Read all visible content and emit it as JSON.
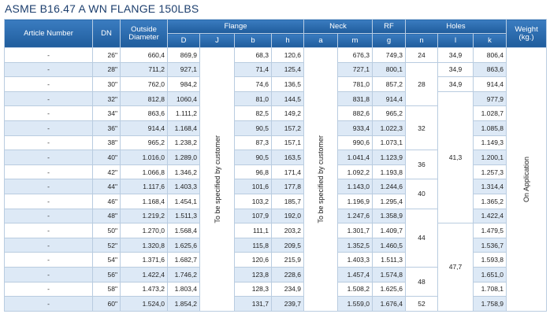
{
  "header": {
    "title": "ASME B16.47 A WN FLANGE 150LBS"
  },
  "table": {
    "columns": {
      "article": "Article Number",
      "dn": "DN",
      "od": "Outside Diameter",
      "flange": "Flange",
      "neck": "Neck",
      "rf": "RF",
      "holes": "Holes",
      "weight": "Weight (kg.)",
      "D": "D",
      "J": "J",
      "b": "b",
      "h": "h",
      "a": "a",
      "m": "m",
      "g": "g",
      "n": "n",
      "l": "l",
      "k": "k"
    },
    "rows": [
      [
        "-",
        "26\"",
        "660,4",
        "869,9",
        "68,3",
        "120,6",
        "676,3",
        "749,3",
        "806,4"
      ],
      [
        "-",
        "28\"",
        "711,2",
        "927,1",
        "71,4",
        "125,4",
        "727,1",
        "800,1",
        "863,6"
      ],
      [
        "-",
        "30\"",
        "762,0",
        "984,2",
        "74,6",
        "136,5",
        "781,0",
        "857,2",
        "914,4"
      ],
      [
        "-",
        "32\"",
        "812,8",
        "1060,4",
        "81,0",
        "144,5",
        "831,8",
        "914,4",
        "977,9"
      ],
      [
        "-",
        "34\"",
        "863,6",
        "1.111,2",
        "82,5",
        "149,2",
        "882,6",
        "965,2",
        "1.028,7"
      ],
      [
        "-",
        "36\"",
        "914,4",
        "1.168,4",
        "90,5",
        "157,2",
        "933,4",
        "1.022,3",
        "1.085,8"
      ],
      [
        "-",
        "38\"",
        "965,2",
        "1.238,2",
        "87,3",
        "157,1",
        "990,6",
        "1.073,1",
        "1.149,3"
      ],
      [
        "-",
        "40\"",
        "1.016,0",
        "1.289,0",
        "90,5",
        "163,5",
        "1.041,4",
        "1.123,9",
        "1.200,1"
      ],
      [
        "-",
        "42\"",
        "1.066,8",
        "1.346,2",
        "96,8",
        "171,4",
        "1.092,2",
        "1.193,8",
        "1.257,3"
      ],
      [
        "-",
        "44\"",
        "1.117,6",
        "1.403,3",
        "101,6",
        "177,8",
        "1.143,0",
        "1.244,6",
        "1.314,4"
      ],
      [
        "-",
        "46\"",
        "1.168,4",
        "1.454,1",
        "103,2",
        "185,7",
        "1.196,9",
        "1.295,4",
        "1.365,2"
      ],
      [
        "-",
        "48\"",
        "1.219,2",
        "1.511,3",
        "107,9",
        "192,0",
        "1.247,6",
        "1.358,9",
        "1.422,4"
      ],
      [
        "-",
        "50\"",
        "1.270,0",
        "1.568,4",
        "111,1",
        "203,2",
        "1.301,7",
        "1.409,7",
        "1.479,5"
      ],
      [
        "-",
        "52\"",
        "1.320,8",
        "1.625,6",
        "115,8",
        "209,5",
        "1.352,5",
        "1.460,5",
        "1.536,7"
      ],
      [
        "-",
        "54\"",
        "1.371,6",
        "1.682,7",
        "120,6",
        "215,9",
        "1.403,3",
        "1.511,3",
        "1.593,8"
      ],
      [
        "-",
        "56\"",
        "1.422,4",
        "1.746,2",
        "123,8",
        "228,6",
        "1.457,4",
        "1.574,8",
        "1.651,0"
      ],
      [
        "-",
        "58\"",
        "1.473,2",
        "1.803,4",
        "128,3",
        "234,9",
        "1.508,2",
        "1.625,6",
        "1.708,1"
      ],
      [
        "-",
        "60\"",
        "1.524,0",
        "1.854,2",
        "131,7",
        "239,7",
        "1.559,0",
        "1.676,4",
        "1.758,9"
      ]
    ],
    "n": [
      "24",
      "28",
      "32",
      "36",
      "40",
      "44",
      "48",
      "52"
    ],
    "l": [
      "34,9",
      "34,9",
      "34,9",
      "41,3",
      "47,7"
    ],
    "J": "To be specified by customer",
    "a": "To be specified by customer",
    "weight": "On Application"
  }
}
